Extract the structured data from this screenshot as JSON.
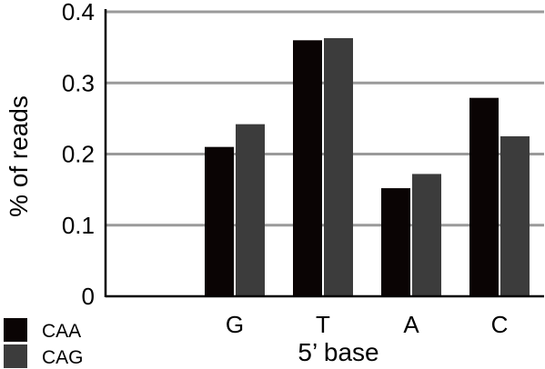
{
  "chart_data": {
    "type": "bar",
    "categories": [
      "G",
      "T",
      "A",
      "C"
    ],
    "series": [
      {
        "name": "CAA",
        "values": [
          0.21,
          0.36,
          0.152,
          0.279
        ],
        "color": "#0a0404"
      },
      {
        "name": "CAG",
        "values": [
          0.242,
          0.363,
          0.172,
          0.225
        ],
        "color": "#3c3c3c"
      }
    ],
    "xlabel": "5’ base",
    "ylabel": "% of reads",
    "ylim": [
      0,
      0.4
    ],
    "yticks": [
      "0",
      "0.1",
      "0.2",
      "0.3",
      "0.4"
    ],
    "grid": true,
    "legend_position": "bottom-left",
    "grid_color": "#9a9a9a"
  }
}
